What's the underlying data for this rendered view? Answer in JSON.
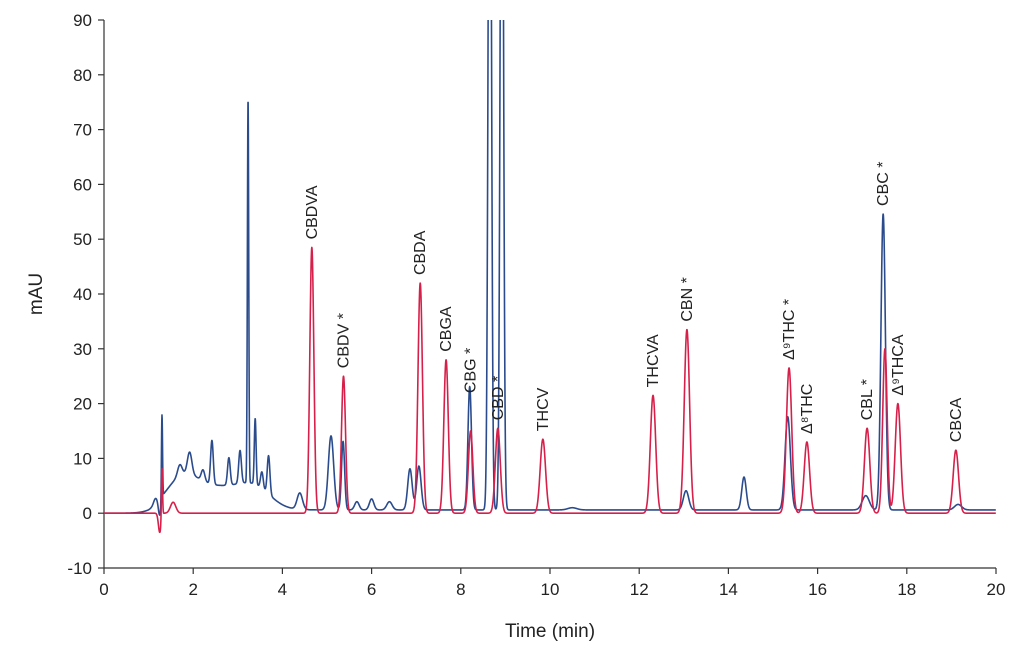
{
  "chart_data": {
    "type": "line",
    "xlabel": "Time (min)",
    "ylabel": "mAU",
    "xlim": [
      0,
      20
    ],
    "ylim": [
      -10,
      90
    ],
    "xticks": [
      0,
      2,
      4,
      6,
      8,
      10,
      12,
      14,
      16,
      18,
      20
    ],
    "yticks": [
      -10,
      0,
      10,
      20,
      30,
      40,
      50,
      60,
      70,
      80,
      90
    ],
    "grid": false,
    "colors": {
      "red_trace": "#d6204a",
      "blue_trace": "#2b4c8c",
      "axis": "#333333"
    },
    "series": [
      {
        "color": "#d6204a",
        "baseline": 0,
        "peaks": [
          [
            1.25,
            -3.5,
            0.03
          ],
          [
            1.3,
            9,
            0.012
          ],
          [
            1.55,
            2,
            0.06
          ],
          [
            4.66,
            48.5,
            0.045
          ],
          [
            5.37,
            25,
            0.045
          ],
          [
            7.09,
            42,
            0.05
          ],
          [
            7.67,
            28,
            0.05
          ],
          [
            8.22,
            15,
            0.05
          ],
          [
            8.83,
            15.5,
            0.055
          ],
          [
            9.84,
            13.5,
            0.06
          ],
          [
            12.31,
            21.5,
            0.06
          ],
          [
            13.07,
            33.5,
            0.06
          ],
          [
            15.36,
            26.5,
            0.06
          ],
          [
            15.76,
            13,
            0.06
          ],
          [
            17.11,
            15.5,
            0.06
          ],
          [
            17.51,
            30,
            0.05
          ],
          [
            17.8,
            20,
            0.06
          ],
          [
            19.1,
            11.5,
            0.06
          ]
        ]
      },
      {
        "color": "#2b4c8c",
        "baseline": 0.6,
        "peaks": [
          [
            1.15,
            1,
            0.04
          ],
          [
            1.25,
            -3,
            0.03
          ],
          [
            1.3,
            15.5,
            0.012
          ],
          [
            1.75,
            5,
            0.35
          ],
          [
            2.6,
            4,
            0.6
          ],
          [
            3.4,
            3,
            0.35
          ],
          [
            1.7,
            2,
            0.05
          ],
          [
            1.92,
            4,
            0.05
          ],
          [
            2.22,
            2,
            0.04
          ],
          [
            2.42,
            8,
            0.03
          ],
          [
            2.8,
            5,
            0.03
          ],
          [
            3.05,
            6,
            0.03
          ],
          [
            3.23,
            70,
            0.015
          ],
          [
            3.39,
            12,
            0.02
          ],
          [
            3.54,
            3,
            0.03
          ],
          [
            3.69,
            7,
            0.03
          ],
          [
            4.39,
            3,
            0.06
          ],
          [
            5.09,
            13.5,
            0.06
          ],
          [
            5.36,
            12.5,
            0.035
          ],
          [
            5.67,
            1.5,
            0.05
          ],
          [
            6.0,
            2,
            0.05
          ],
          [
            6.4,
            1.5,
            0.06
          ],
          [
            6.86,
            7.5,
            0.05
          ],
          [
            7.06,
            8,
            0.05
          ],
          [
            8.2,
            22.5,
            0.04
          ],
          [
            8.65,
            160,
            0.035
          ],
          [
            8.92,
            160,
            0.035
          ],
          [
            10.5,
            0.4,
            0.1
          ],
          [
            13.05,
            3.5,
            0.06
          ],
          [
            14.35,
            6,
            0.05
          ],
          [
            15.33,
            17,
            0.06
          ],
          [
            17.08,
            2.6,
            0.08
          ],
          [
            17.47,
            54,
            0.05
          ],
          [
            19.15,
            1,
            0.08
          ]
        ]
      }
    ],
    "annotations": [
      {
        "text": "CBDVA",
        "x": 4.66
      },
      {
        "text": "CBDV *",
        "x": 5.37
      },
      {
        "text": "CBDA",
        "x": 7.09
      },
      {
        "text": "CBGA",
        "x": 7.67
      },
      {
        "text": "CBG *",
        "x": 8.22
      },
      {
        "text": "CBD *",
        "x": 8.83
      },
      {
        "text": "THCV",
        "x": 9.84
      },
      {
        "text": "THCVA",
        "x": 12.31
      },
      {
        "text": "CBN *",
        "x": 13.07
      },
      {
        "text": "Δ⁹THC *",
        "x": 15.36
      },
      {
        "text": "Δ⁸THC",
        "x": 15.76
      },
      {
        "text": "CBL *",
        "x": 17.11
      },
      {
        "text": "CBC *",
        "x": 17.47
      },
      {
        "text": "Δ⁹THCA",
        "x": 17.8
      },
      {
        "text": "CBCA",
        "x": 19.1
      }
    ]
  }
}
